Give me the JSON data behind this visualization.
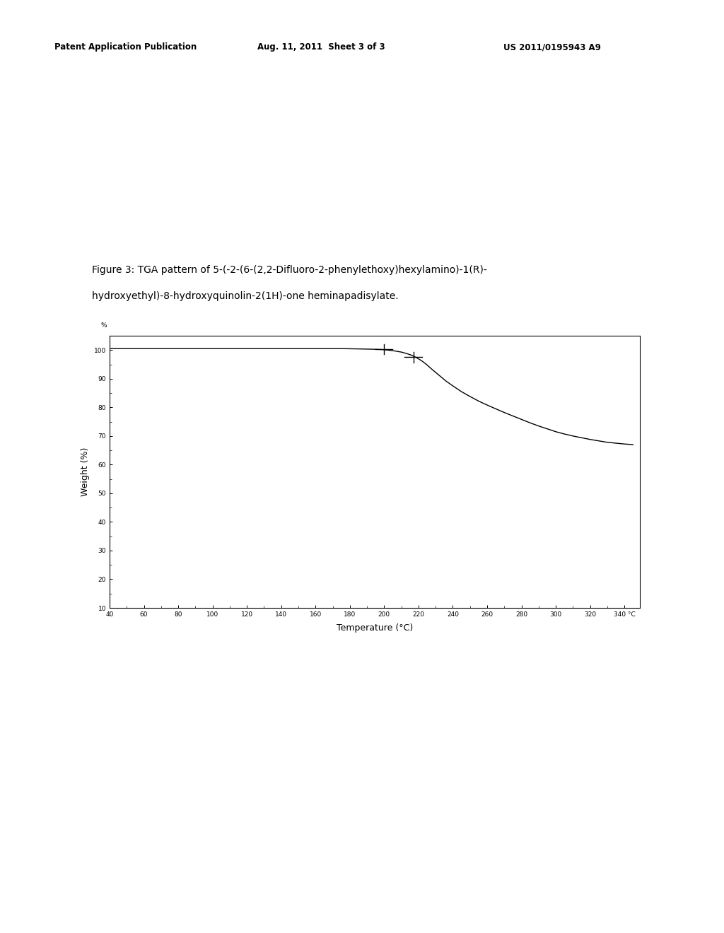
{
  "header_left": "Patent Application Publication",
  "header_center": "Aug. 11, 2011  Sheet 3 of 3",
  "header_right": "US 2011/0195943 A9",
  "figure_caption_line1": "Figure 3: TGA pattern of 5-(-2-(6-(2,2-Difluoro-2-phenylethoxy)hexylamino)-1(R)-",
  "figure_caption_line2": "hydroxyethyl)-8-hydroxyquinolin-2(1H)-one heminapadisylate.",
  "xlabel": "Temperature (°C)",
  "ylabel": "Weight (%)",
  "xlim": [
    40,
    349
  ],
  "ylim": [
    10,
    105
  ],
  "xticks": [
    40,
    60,
    80,
    100,
    120,
    140,
    160,
    180,
    200,
    220,
    240,
    260,
    280,
    300,
    320,
    340
  ],
  "yticks": [
    10,
    20,
    30,
    40,
    50,
    60,
    70,
    80,
    90,
    100
  ],
  "background_color": "#ffffff",
  "plot_bg_color": "#ffffff",
  "line_color": "#000000",
  "curve_x": [
    40,
    60,
    80,
    100,
    120,
    140,
    160,
    175,
    185,
    193,
    198,
    202,
    206,
    210,
    213,
    216,
    219,
    222,
    225,
    228,
    232,
    236,
    240,
    245,
    250,
    255,
    260,
    265,
    270,
    275,
    280,
    285,
    290,
    295,
    300,
    305,
    310,
    315,
    320,
    325,
    330,
    335,
    340,
    345
  ],
  "curve_y": [
    100.5,
    100.5,
    100.5,
    100.5,
    100.5,
    100.5,
    100.5,
    100.5,
    100.4,
    100.3,
    100.2,
    100.0,
    99.7,
    99.3,
    98.8,
    98.2,
    97.3,
    96.2,
    94.8,
    93.2,
    91.2,
    89.2,
    87.5,
    85.5,
    83.8,
    82.2,
    80.8,
    79.5,
    78.2,
    77.0,
    75.8,
    74.6,
    73.5,
    72.5,
    71.5,
    70.7,
    70.0,
    69.4,
    68.8,
    68.3,
    67.8,
    67.5,
    67.2,
    67.0
  ],
  "marker1_x": 200,
  "marker1_y": 100.3,
  "marker2_x": 217,
  "marker2_y": 97.5,
  "title_fontsize": 10,
  "axis_label_fontsize": 9,
  "tick_fontsize": 6.5,
  "header_fontsize": 8.5
}
